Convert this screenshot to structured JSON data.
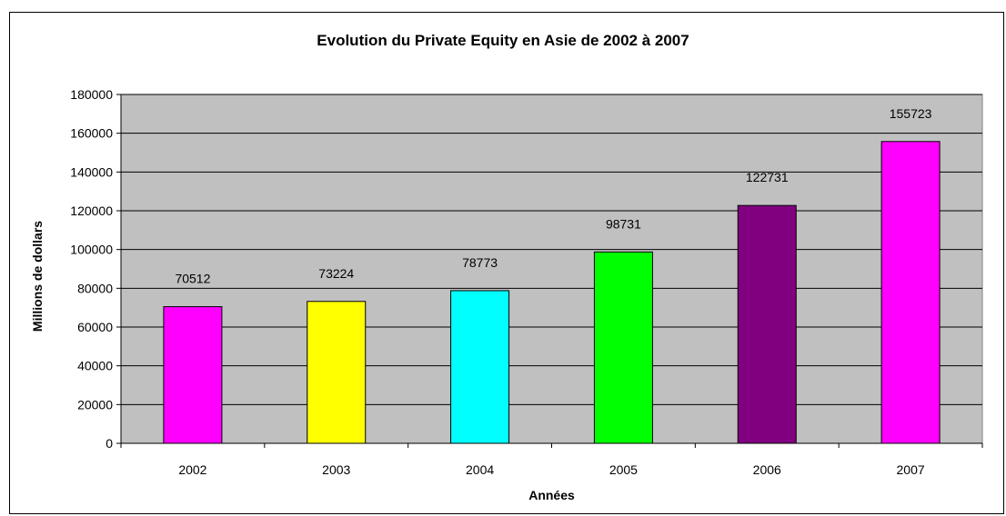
{
  "chart_data": {
    "type": "bar",
    "title": "Evolution du Private Equity en Asie de 2002 à 2007",
    "xlabel": "Années",
    "ylabel": "Millions de dollars",
    "categories": [
      "2002",
      "2003",
      "2004",
      "2005",
      "2006",
      "2007"
    ],
    "values": [
      70512,
      73224,
      78773,
      98731,
      122731,
      155723
    ],
    "data_labels": [
      "70512",
      "73224",
      "78773",
      "98731",
      "122731",
      "155723"
    ],
    "bar_colors": [
      "#ff00ff",
      "#ffff00",
      "#00ffff",
      "#00ff00",
      "#800080",
      "#ff00ff"
    ],
    "ylim": [
      0,
      180000
    ],
    "yticks": [
      "0",
      "20000",
      "40000",
      "60000",
      "80000",
      "100000",
      "120000",
      "140000",
      "160000",
      "180000"
    ],
    "plot_background": "#c0c0c0",
    "grid": true,
    "legend": false
  }
}
